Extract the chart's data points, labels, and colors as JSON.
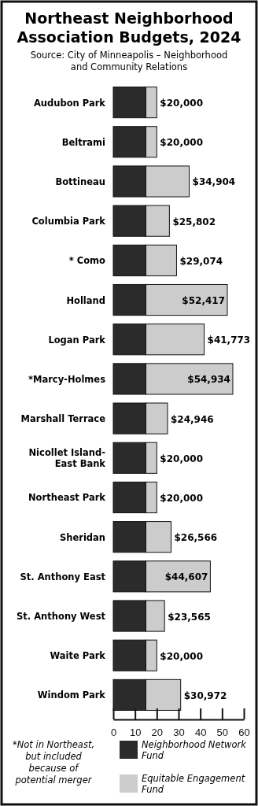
{
  "chart_data": {
    "type": "bar",
    "orientation": "horizontal",
    "stacked": true,
    "title": "Northeast Neighborhood Association Budgets, 2024",
    "subtitle": "Source: City of Minneapolis – Neighborhood and Community Relations",
    "categories": [
      "Audubon Park",
      "Beltrami",
      "Bottineau",
      "Columbia Park",
      "* Como",
      "Holland",
      "Logan Park",
      "*Marcy-Holmes",
      "Marshall Terrace",
      "Nicollet Island-East Bank",
      "Northeast Park",
      "Sheridan",
      "St. Anthony East",
      "St. Anthony West",
      "Waite Park",
      "Windom Park"
    ],
    "series": [
      {
        "name": "Neighborhood Network Fund",
        "color": "#2b2b2b",
        "values": [
          15,
          15,
          15,
          15,
          15,
          15,
          15,
          15,
          15,
          15,
          15,
          15,
          15,
          15,
          15,
          15
        ]
      },
      {
        "name": "Equitable Engagement Fund",
        "color": "#cccccc",
        "values": [
          5,
          5,
          19.904,
          10.802,
          14.074,
          37.417,
          26.773,
          39.934,
          9.946,
          5,
          5,
          11.566,
          29.607,
          8.565,
          5,
          15.972
        ]
      }
    ],
    "totals": [
      "$20,000",
      "$20,000",
      "$34,904",
      "$25,802",
      "$29,074",
      "$52,417",
      "$41,773",
      "$54,934",
      "$24,946",
      "$20,000",
      "$20,000",
      "$26,566",
      "$44,607",
      "$23,565",
      "$20,000",
      "$30,972"
    ],
    "xlim": [
      0,
      60
    ],
    "xticks": [
      0,
      10,
      20,
      30,
      40,
      50,
      60
    ],
    "grid": false,
    "legend": "bottom right",
    "annotations": [
      "*Not in Northeast, but included because of potential merger"
    ]
  }
}
